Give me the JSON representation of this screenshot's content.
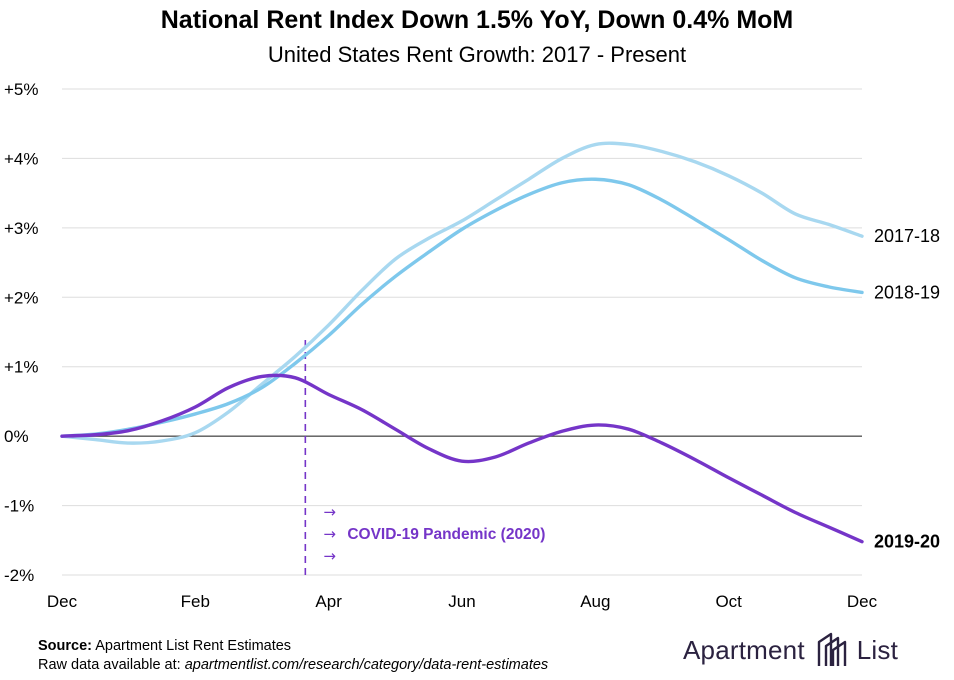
{
  "title": "National Rent Index Down 1.5% YoY, Down 0.4% MoM",
  "subtitle": "United States Rent Growth: 2017 - Present",
  "source_label": "Source:",
  "source_text": "Apartment List Rent Estimates",
  "rawdata_label": "Raw data available at:",
  "rawdata_url": "apartmentlist.com/research/category/data-rent-estimates",
  "brand": {
    "name_left": "Apartment",
    "name_right": "List",
    "logo_icon": "apartment-list-logo-icon"
  },
  "colors": {
    "s2017": "#a8d8f0",
    "s2018": "#7ec8ec",
    "s2019": "#7535c8",
    "zero": "#555555",
    "grid": "#dddddd",
    "brand": "#2b2240"
  },
  "annotation": {
    "label": "COVID-19 Pandemic (2020)",
    "arrow_glyph": "→",
    "x_month": 3.65
  },
  "chart_data": {
    "type": "line",
    "title": "National Rent Index Down 1.5% YoY, Down 0.4% MoM",
    "subtitle": "United States Rent Growth: 2017 - Present",
    "xlabel": "",
    "ylabel": "",
    "x_tick_labels": [
      "Dec",
      "Feb",
      "Apr",
      "Jun",
      "Aug",
      "Oct",
      "Dec"
    ],
    "x_tick_months": [
      0,
      2,
      4,
      6,
      8,
      10,
      12
    ],
    "y_tick_labels": [
      "+5%",
      "+4%",
      "+3%",
      "+2%",
      "+1%",
      "0%",
      "-1%",
      "-2%"
    ],
    "y_tick_values": [
      5,
      4,
      3,
      2,
      1,
      0,
      -1,
      -2
    ],
    "ylim": [
      -2,
      5
    ],
    "xlim": [
      0,
      12
    ],
    "grid": true,
    "series": [
      {
        "name": "2017-18",
        "x": [
          0,
          0.5,
          1,
          1.5,
          2,
          2.5,
          3,
          3.5,
          4,
          4.5,
          5,
          5.5,
          6,
          6.5,
          7,
          7.5,
          8,
          8.5,
          9,
          9.5,
          10,
          10.5,
          11,
          11.5,
          12
        ],
        "y": [
          0,
          -0.05,
          -0.1,
          -0.07,
          0.05,
          0.35,
          0.75,
          1.15,
          1.6,
          2.1,
          2.55,
          2.85,
          3.1,
          3.4,
          3.7,
          4.0,
          4.2,
          4.2,
          4.1,
          3.95,
          3.75,
          3.5,
          3.2,
          3.05,
          2.88
        ]
      },
      {
        "name": "2018-19",
        "x": [
          0,
          0.5,
          1,
          1.5,
          2,
          2.5,
          3,
          3.5,
          4,
          4.5,
          5,
          5.5,
          6,
          6.5,
          7,
          7.5,
          8,
          8.5,
          9,
          9.5,
          10,
          10.5,
          11,
          11.5,
          12
        ],
        "y": [
          0,
          0.03,
          0.1,
          0.2,
          0.32,
          0.47,
          0.7,
          1.05,
          1.45,
          1.9,
          2.3,
          2.65,
          2.98,
          3.25,
          3.48,
          3.65,
          3.7,
          3.62,
          3.4,
          3.12,
          2.83,
          2.53,
          2.28,
          2.15,
          2.07
        ]
      },
      {
        "name": "2019-20",
        "x": [
          0,
          0.5,
          1,
          1.5,
          2,
          2.5,
          3,
          3.5,
          4,
          4.5,
          5,
          5.5,
          6,
          6.5,
          7,
          7.5,
          8,
          8.5,
          9,
          9.5,
          10,
          10.5,
          11,
          11.5,
          12
        ],
        "y": [
          0,
          0.02,
          0.08,
          0.22,
          0.42,
          0.7,
          0.86,
          0.84,
          0.6,
          0.38,
          0.1,
          -0.18,
          -0.36,
          -0.3,
          -0.1,
          0.07,
          0.16,
          0.1,
          -0.1,
          -0.34,
          -0.6,
          -0.85,
          -1.1,
          -1.31,
          -1.52
        ]
      }
    ]
  }
}
